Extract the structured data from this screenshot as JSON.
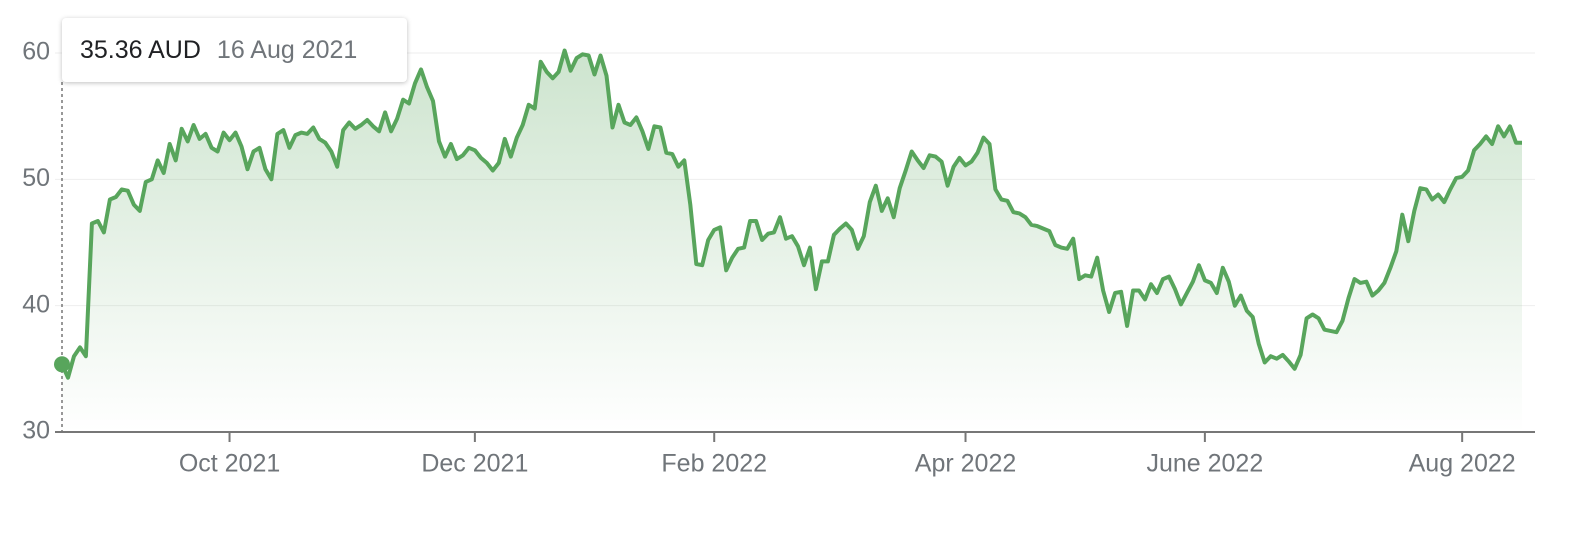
{
  "chart_data": {
    "type": "line",
    "color": "#58a55c",
    "tooltip": {
      "price": "35.36 AUD",
      "date": "16 Aug 2021"
    },
    "categories": [
      null,
      null,
      null,
      null,
      null,
      null,
      null,
      null,
      null,
      null,
      null,
      null,
      null,
      null,
      null,
      null,
      null,
      null,
      null,
      null,
      null,
      null,
      null,
      null,
      null,
      null,
      null,
      null,
      "Oct 2021",
      null,
      null,
      null,
      null,
      null,
      null,
      null,
      null,
      null,
      null,
      null,
      null,
      null,
      null,
      null,
      null,
      null,
      null,
      null,
      null,
      null,
      null,
      null,
      null,
      null,
      null,
      null,
      null,
      null,
      null,
      null,
      null,
      null,
      null,
      null,
      null,
      null,
      null,
      null,
      null,
      "Dec 2021",
      null,
      null,
      null,
      null,
      null,
      null,
      null,
      null,
      null,
      null,
      null,
      null,
      null,
      null,
      null,
      null,
      null,
      null,
      null,
      null,
      null,
      null,
      null,
      null,
      null,
      null,
      null,
      null,
      null,
      null,
      null,
      null,
      null,
      null,
      null,
      null,
      null,
      null,
      null,
      "Feb 2022",
      null,
      null,
      null,
      null,
      null,
      null,
      null,
      null,
      null,
      null,
      null,
      null,
      null,
      null,
      null,
      null,
      null,
      null,
      null,
      null,
      null,
      null,
      null,
      null,
      null,
      null,
      null,
      null,
      null,
      null,
      null,
      null,
      null,
      null,
      null,
      null,
      null,
      null,
      null,
      null,
      null,
      "Apr 2022",
      null,
      null,
      null,
      null,
      null,
      null,
      null,
      null,
      null,
      null,
      null,
      null,
      null,
      null,
      null,
      null,
      null,
      null,
      null,
      null,
      null,
      null,
      null,
      null,
      null,
      null,
      null,
      null,
      null,
      null,
      null,
      null,
      null,
      null,
      null,
      null,
      null,
      null,
      null,
      "June 2022",
      null,
      null,
      null,
      null,
      null,
      null,
      null,
      null,
      null,
      null,
      null,
      null,
      null,
      null,
      null,
      null,
      null,
      null,
      null,
      null,
      null,
      null,
      null,
      null,
      null,
      null,
      null,
      null,
      null,
      null,
      null,
      null,
      null,
      null,
      null,
      null,
      null,
      null,
      null,
      null,
      null,
      null,
      "Aug 2022",
      null,
      null,
      null,
      null,
      null,
      null,
      null,
      null,
      null,
      null
    ],
    "values": [
      35.36,
      34.3,
      36,
      36.7,
      36,
      46.5,
      46.7,
      45.8,
      48.4,
      48.6,
      49.2,
      49.1,
      48,
      47.5,
      49.8,
      50,
      51.5,
      50.5,
      52.8,
      51.5,
      54,
      53,
      54.3,
      53.2,
      53.6,
      52.5,
      52.2,
      53.7,
      53.1,
      53.7,
      52.6,
      50.8,
      52.2,
      52.5,
      50.8,
      50,
      53.6,
      53.9,
      52.5,
      53.5,
      53.7,
      53.6,
      54.1,
      53.2,
      52.9,
      52.2,
      51,
      53.9,
      54.5,
      54,
      54.3,
      54.7,
      54.2,
      53.8,
      55.3,
      53.8,
      54.8,
      56.3,
      56,
      57.6,
      58.7,
      57.3,
      56.2,
      53,
      51.8,
      52.8,
      51.6,
      51.9,
      52.5,
      52.3,
      51.7,
      51.3,
      50.7,
      51.3,
      53.2,
      51.8,
      53.3,
      54.3,
      55.9,
      55.6,
      59.3,
      58.5,
      58,
      58.5,
      60.2,
      58.6,
      59.6,
      59.9,
      59.8,
      58.3,
      59.8,
      58.2,
      54.1,
      55.9,
      54.5,
      54.3,
      54.9,
      53.8,
      52.4,
      54.2,
      54.1,
      52.1,
      52,
      51,
      51.5,
      48,
      43.3,
      43.2,
      45.2,
      46,
      46.2,
      42.8,
      43.8,
      44.5,
      44.6,
      46.7,
      46.7,
      45.2,
      45.7,
      45.8,
      47,
      45.3,
      45.5,
      44.7,
      43.2,
      44.6,
      41.3,
      43.5,
      43.5,
      45.6,
      46.1,
      46.5,
      46,
      44.5,
      45.5,
      48.2,
      49.5,
      47.5,
      48.5,
      47,
      49.3,
      50.7,
      52.2,
      51.5,
      50.9,
      51.9,
      51.8,
      51.4,
      49.5,
      51,
      51.7,
      51.1,
      51.4,
      52.1,
      53.3,
      52.8,
      49.2,
      48.4,
      48.3,
      47.4,
      47.3,
      47,
      46.4,
      46.3,
      46.1,
      45.9,
      44.8,
      44.6,
      44.5,
      45.3,
      42.1,
      42.4,
      42.3,
      43.8,
      41.2,
      39.5,
      41,
      41.1,
      38.4,
      41.2,
      41.2,
      40.5,
      41.7,
      41,
      42.1,
      42.3,
      41.3,
      40.1,
      41,
      41.9,
      43.2,
      42,
      41.8,
      41,
      43,
      41.9,
      40,
      40.8,
      39.6,
      39.1,
      37,
      35.5,
      36,
      35.8,
      36.1,
      35.6,
      35,
      36.1,
      39,
      39.3,
      39,
      38.1,
      38,
      37.9,
      38.8,
      40.6,
      42.1,
      41.8,
      41.9,
      40.8,
      41.2,
      41.8,
      43,
      44.3,
      47.2,
      45.1,
      47.5,
      49.3,
      49.2,
      48.4,
      48.8,
      48.2,
      49.2,
      50.1,
      50.2,
      50.7,
      52.3,
      52.8,
      53.4,
      52.8,
      54.2,
      53.4,
      54.2,
      52.9,
      52.9
    ],
    "ylim": [
      30,
      60
    ],
    "yticks": [
      30,
      40,
      50,
      60
    ],
    "grid": true
  }
}
